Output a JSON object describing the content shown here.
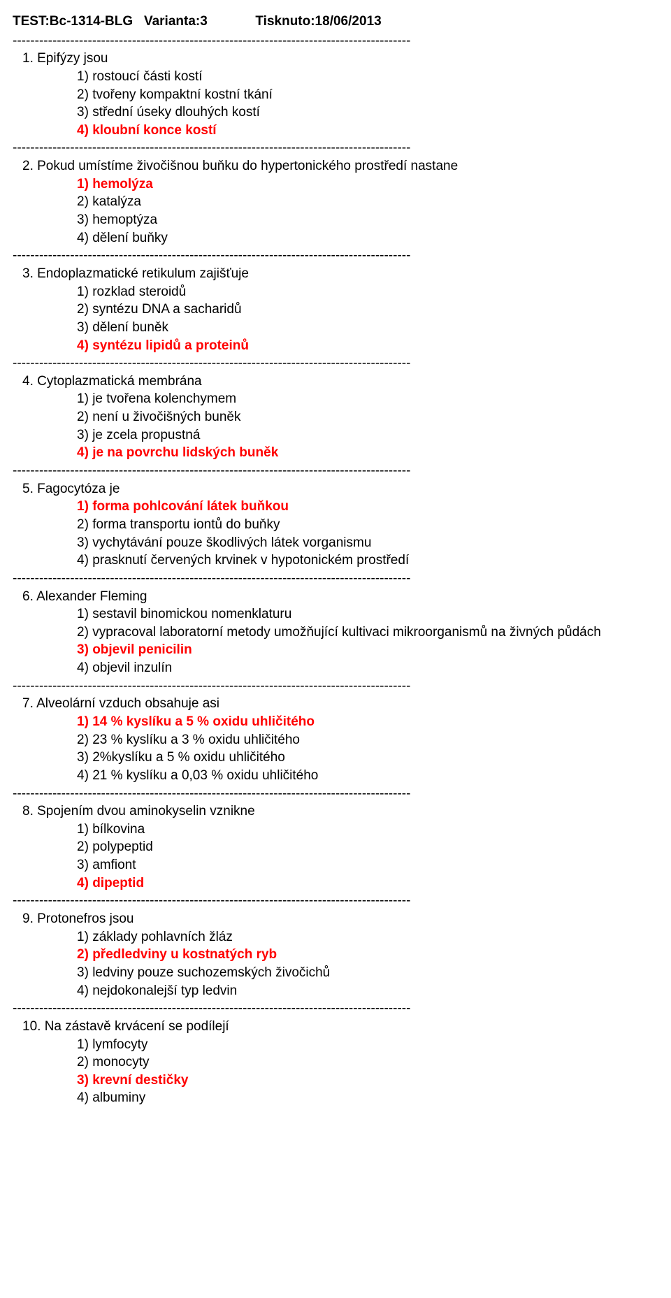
{
  "header": {
    "test_label": "TEST:Bc-1314-BLG",
    "variant_label": "Varianta:3",
    "printed_label": "Tisknuto:18/06/2013"
  },
  "separator": "------------------------------------------------------------------------------------------",
  "questions": [
    {
      "num": "1.",
      "text": "Epifýzy jsou",
      "answers": [
        {
          "n": "1)",
          "text": "rostoucí části kostí",
          "correct": false
        },
        {
          "n": "2)",
          "text": "tvořeny kompaktní kostní tkání",
          "correct": false
        },
        {
          "n": "3)",
          "text": "střední úseky dlouhých kostí",
          "correct": false
        },
        {
          "n": "4)",
          "text": "kloubní konce kostí",
          "correct": true
        }
      ]
    },
    {
      "num": "2.",
      "text": "Pokud umístíme živočišnou buňku do hypertonického prostředí nastane",
      "answers": [
        {
          "n": "1)",
          "text": "hemolýza",
          "correct": true
        },
        {
          "n": "2)",
          "text": "katalýza",
          "correct": false
        },
        {
          "n": "3)",
          "text": "hemoptýza",
          "correct": false
        },
        {
          "n": "4)",
          "text": "dělení buňky",
          "correct": false
        }
      ]
    },
    {
      "num": "3.",
      "text": "Endoplazmatické retikulum zajišťuje",
      "answers": [
        {
          "n": "1)",
          "text": "rozklad steroidů",
          "correct": false
        },
        {
          "n": "2)",
          "text": "syntézu DNA a sacharidů",
          "correct": false
        },
        {
          "n": "3)",
          "text": "dělení buněk",
          "correct": false
        },
        {
          "n": "4)",
          "text": "syntézu lipidů a proteinů",
          "correct": true
        }
      ]
    },
    {
      "num": "4.",
      "text": "Cytoplazmatická membrána",
      "answers": [
        {
          "n": "1)",
          "text": "je tvořena kolenchymem",
          "correct": false
        },
        {
          "n": "2)",
          "text": "není u živočišných buněk",
          "correct": false
        },
        {
          "n": "3)",
          "text": "je zcela propustná",
          "correct": false
        },
        {
          "n": "4)",
          "text": "je na povrchu lidských buněk",
          "correct": true
        }
      ]
    },
    {
      "num": "5.",
      "text": "Fagocytóza je",
      "answers": [
        {
          "n": "1)",
          "text": "forma pohlcování látek buňkou",
          "correct": true
        },
        {
          "n": "2)",
          "text": "forma transportu iontů do buňky",
          "correct": false
        },
        {
          "n": "3)",
          "text": "vychytávání pouze škodlivých látek vorganismu",
          "correct": false
        },
        {
          "n": "4)",
          "text": "prasknutí červených krvinek v hypotonickém prostředí",
          "correct": false
        }
      ]
    },
    {
      "num": "6.",
      "text": "Alexander Fleming",
      "answers": [
        {
          "n": "1)",
          "text": "sestavil binomickou nomenklaturu",
          "correct": false
        },
        {
          "n": "2)",
          "text": "vypracoval laboratorní metody umožňující kultivaci mikroorganismů na živných půdách",
          "correct": false
        },
        {
          "n": "3)",
          "text": "objevil penicilin",
          "correct": true
        },
        {
          "n": "4)",
          "text": "objevil inzulín",
          "correct": false
        }
      ]
    },
    {
      "num": "7.",
      "text": "Alveolární vzduch obsahuje asi",
      "answers": [
        {
          "n": "1)",
          "text": "14 % kyslíku a 5 % oxidu uhličitého",
          "correct": true
        },
        {
          "n": "2)",
          "text": "23 % kyslíku a 3 % oxidu uhličitého",
          "correct": false
        },
        {
          "n": "3)",
          "text": "2%kyslíku a 5 % oxidu uhličitého",
          "correct": false
        },
        {
          "n": "4)",
          "text": "21 % kyslíku a 0,03 % oxidu uhličitého",
          "correct": false
        }
      ]
    },
    {
      "num": "8.",
      "text": "Spojením dvou aminokyselin vznikne",
      "answers": [
        {
          "n": "1)",
          "text": "bílkovina",
          "correct": false
        },
        {
          "n": "2)",
          "text": "polypeptid",
          "correct": false
        },
        {
          "n": "3)",
          "text": "amfiont",
          "correct": false
        },
        {
          "n": "4)",
          "text": "dipeptid",
          "correct": true
        }
      ]
    },
    {
      "num": "9.",
      "text": "Protonefros jsou",
      "answers": [
        {
          "n": "1)",
          "text": "základy pohlavních žláz",
          "correct": false
        },
        {
          "n": "2)",
          "text": "předledviny u kostnatých ryb",
          "correct": true
        },
        {
          "n": "3)",
          "text": "ledviny pouze suchozemských živočichů",
          "correct": false
        },
        {
          "n": "4)",
          "text": "nejdokonalejší typ ledvin",
          "correct": false
        }
      ]
    },
    {
      "num": "10.",
      "text": "Na zástavě krvácení se podílejí",
      "answers": [
        {
          "n": "1)",
          "text": "lymfocyty",
          "correct": false
        },
        {
          "n": "2)",
          "text": "monocyty",
          "correct": false
        },
        {
          "n": "3)",
          "text": "krevní destičky",
          "correct": true
        },
        {
          "n": "4)",
          "text": "albuminy",
          "correct": false
        }
      ],
      "no_trailing_sep": true
    }
  ]
}
